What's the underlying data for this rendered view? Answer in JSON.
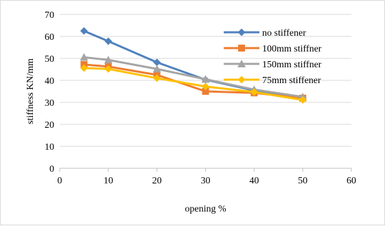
{
  "chart_data": {
    "type": "line",
    "title": "",
    "xlabel": "opening %",
    "ylabel": "stiffness KN/mm",
    "xlim": [
      0,
      60
    ],
    "ylim": [
      0,
      70
    ],
    "x_ticks": [
      0,
      10,
      20,
      30,
      40,
      50,
      60
    ],
    "y_ticks": [
      0,
      10,
      20,
      30,
      40,
      50,
      60,
      70
    ],
    "grid": "horizontal",
    "legend_position": "top-right",
    "x": [
      5,
      10,
      20,
      30,
      40,
      50
    ],
    "series": [
      {
        "name": "no stiffener",
        "color": "#4F81BD",
        "marker": "diamond",
        "values": [
          62.5,
          57.8,
          48.2,
          40.3,
          35.4,
          32.2
        ]
      },
      {
        "name": "100mm stiffner",
        "color": "#ED7D31",
        "marker": "square",
        "values": [
          47.2,
          46.3,
          42.5,
          35.0,
          34.3,
          31.9
        ]
      },
      {
        "name": "150mm stiffner",
        "color": "#A5A5A5",
        "marker": "triangle",
        "values": [
          50.5,
          49.3,
          45.2,
          40.5,
          35.8,
          32.5
        ]
      },
      {
        "name": "75mm stiffener",
        "color": "#FFC000",
        "marker": "diamond",
        "values": [
          45.6,
          45.2,
          41.0,
          37.2,
          34.7,
          31.1
        ]
      }
    ]
  }
}
